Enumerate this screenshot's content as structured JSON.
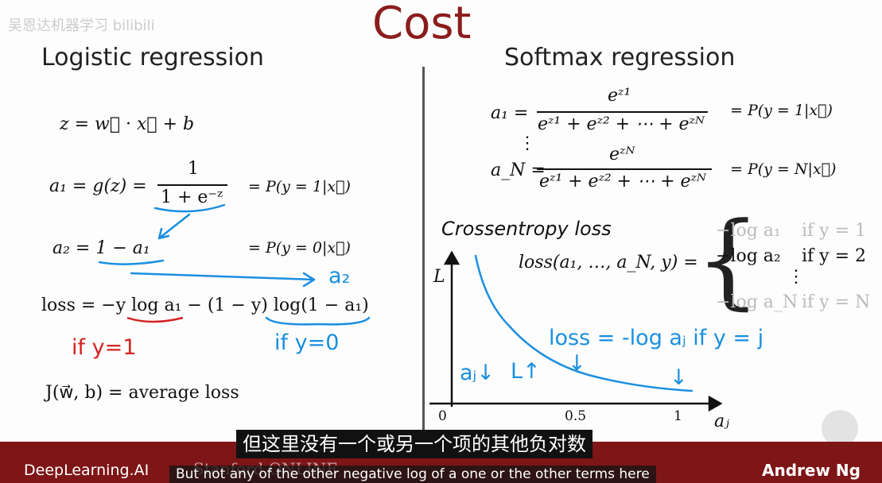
{
  "watermark": "吴恩达机器学习 bilibili",
  "title": "Cost",
  "left": {
    "heading": "Logistic regression",
    "z_eq": "z = w⃗ · x⃗ + b",
    "a1_lhs": "a₁ = g(z) =",
    "a1_num": "1",
    "a1_den": "1 + e⁻ᶻ",
    "a1_prob": "= P(y = 1|x⃗)",
    "a2_eq": "a₂ = 1 − a₁",
    "a2_prob": "= P(y = 0|x⃗)",
    "loss_eq": "loss = −y log a₁ − (1 − y) log(1 − a₁)",
    "j_eq": "J(w⃗, b) = average loss",
    "hand_a2": "a₂",
    "hand_if1": "if y=1",
    "hand_if0": "if y=0"
  },
  "right": {
    "heading": "Softmax regression",
    "a1_lhs": "a₁ =",
    "a1_num": "eᶻ¹",
    "a1_den": "eᶻ¹ + eᶻ² + ⋯ + eᶻᴺ",
    "a1_prob": "= P(y = 1|x⃗)",
    "vdots": "⋮",
    "aN_lhs": "a_N =",
    "aN_num": "eᶻᴺ",
    "aN_den": "eᶻ¹ + eᶻ² + ⋯ + eᶻᴺ",
    "aN_prob": "= P(y = N|x⃗)",
    "ce_heading": "Crossentropy loss",
    "loss_lhs": "loss(a₁, …, a_N, y) =",
    "cases": [
      {
        "expr": "−log a₁",
        "cond": "if y = 1"
      },
      {
        "expr": "−log a₂",
        "cond": "if y = 2"
      },
      {
        "expr": "⋮",
        "cond": null
      },
      {
        "expr": "−log a_N",
        "cond": "if y = N"
      }
    ],
    "plot": {
      "y_label": "L",
      "x_label": "aⱼ",
      "x_ticks": [
        "0",
        "0.5",
        "1"
      ]
    },
    "hand_loss": "loss = -log aⱼ  if y = j",
    "hand_aj": "aⱼ↓",
    "hand_L": "L↑",
    "hand_arrow1": "↓",
    "hand_arrow2": "↓"
  },
  "subtitle_zh": "但这里没有一个或另一个项的其他负对数",
  "subtitle_en": "But not any of the other negative log of a one or the other terms here",
  "footer": {
    "left": "DeepLearning.AI",
    "middle": "Stanford ONLINE",
    "right": "Andrew Ng"
  }
}
